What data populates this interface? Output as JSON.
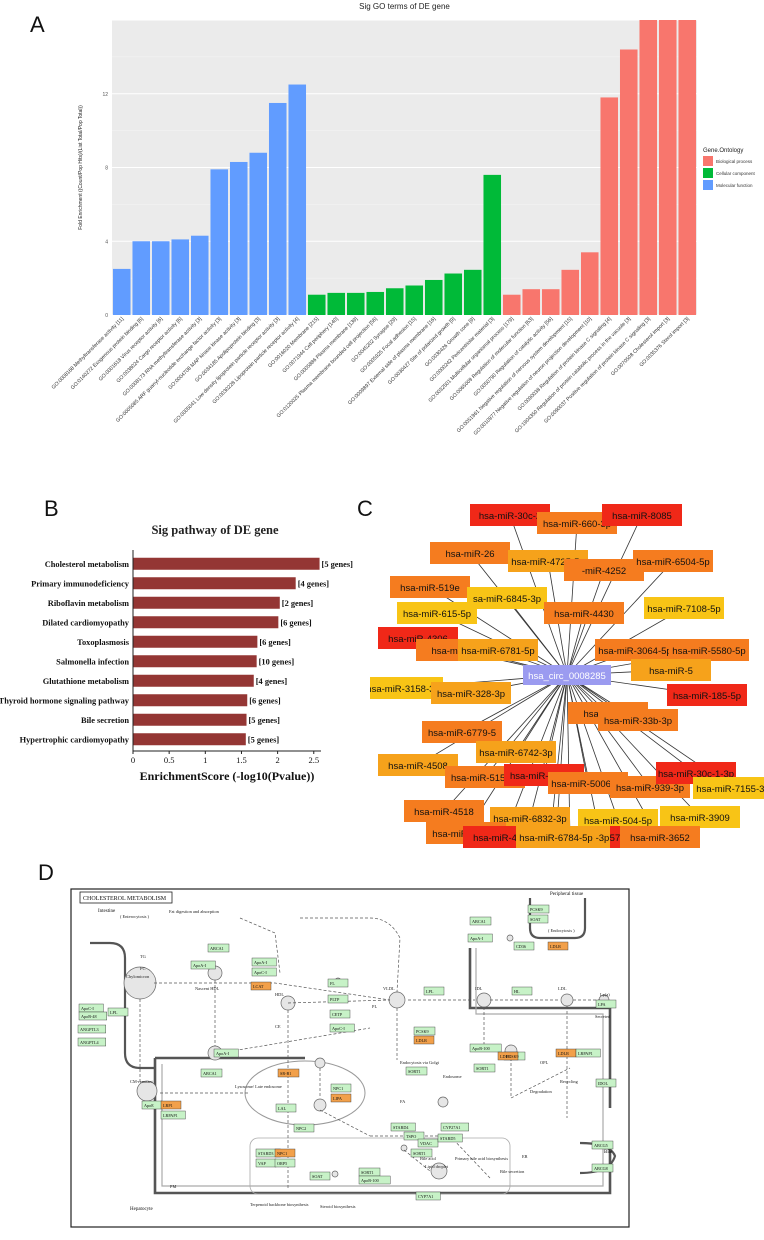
{
  "panels": {
    "a": "A",
    "b": "B",
    "c": "C",
    "d": "D"
  },
  "colors": {
    "biological": "#F8766D",
    "cellular": "#00BA38",
    "molecular": "#619CFF",
    "panelA_bg": "#EBEBEB",
    "barB": "#943634",
    "mirna_red": "#F02818",
    "mirna_orange": "#F57C1F",
    "mirna_amber": "#F6A21B",
    "mirna_yellow": "#F8C416",
    "circ": "#9B9BF0",
    "kegg_green": "#C7F2C7",
    "kegg_orange": "#F2A04A"
  },
  "chart_data": [
    {
      "type": "bar",
      "title": "Sig GO terms of DE gene",
      "xlabel": "",
      "ylabel": "Fold Enrichment ((Count/Pop Hits)/(List Total/Pop Total))",
      "ylim": [
        0,
        16
      ],
      "yticks": [
        "0",
        "4",
        "8",
        "12"
      ],
      "grid": true,
      "legend_title": "Gene.Ontology",
      "legend_position": "right",
      "legend": [
        {
          "key": "bp",
          "label": "Biological process"
        },
        {
          "key": "cc",
          "label": "Cellular component"
        },
        {
          "key": "mf",
          "label": "Molecular function"
        }
      ],
      "categories": [
        "GO:0008168 Methyltransferase activity [11]",
        "GO:0140272 Exogenous protein binding [6]",
        "GO:0001618 Virus receptor activity [6]",
        "GO:0038024 Cargo receptor activity [6]",
        "GO:0008173 RNA methyltransferase activity [3]",
        "GO:0005085 ARF guanyl-nucleotide exchange factor activity [3]",
        "GO:0004708 MAP kinase kinase activity [3]",
        "GO:0034185 Apolipoprotein binding [3]",
        "GO:0005041 Low-density lipoprotein particle receptor activity [3]",
        "GO:0030228 Lipoprotein particle receptor activity [4]",
        "GO:0016020 Membrane [215]",
        "GO:0071944 Cell periphery [140]",
        "GO:0005886 Plasma membrane [139]",
        "GO:0120025 Plasma membrane bounded cell projection [56]",
        "GO:0045202 Synapse [29]",
        "GO:0005925 Focal adhesion [15]",
        "GO:0009897 External side of plasma membrane [16]",
        "GO:0030427 Site of polarized growth [9]",
        "GO:0030426 Growth cone [9]",
        "GO:0000242 Pericentriolar material [3]",
        "GO:0032501 Multicellular organismal process [179]",
        "GO:0065009 Regulation of molecular function [63]",
        "GO:0050790 Regulation of catalytic activity [56]",
        "GO:0051961 Negative regulation of nervous system development [15]",
        "GO:0010977 Negative regulation of neuron projection development [10]",
        "GO:0090038 Regulation of protein kinase C signaling [4]",
        "GO:1904350 Regulation of protein catabolic process in the vacuole [3]",
        "GO:0090037 Positive regulation of protein kinase C signaling [3]",
        "GO:0070508 Cholesterol import [3]",
        "GO:0035376 Sterol import [3]"
      ],
      "values": [
        2.5,
        4.0,
        4.0,
        4.1,
        4.3,
        7.9,
        8.3,
        8.8,
        11.5,
        12.5,
        1.1,
        1.2,
        1.2,
        1.25,
        1.45,
        1.6,
        1.9,
        2.25,
        2.45,
        7.6,
        1.1,
        1.4,
        1.4,
        2.45,
        3.4,
        11.8,
        14.4,
        16.0,
        16.0,
        16.0
      ],
      "groups": [
        "mf",
        "mf",
        "mf",
        "mf",
        "mf",
        "mf",
        "mf",
        "mf",
        "mf",
        "mf",
        "cc",
        "cc",
        "cc",
        "cc",
        "cc",
        "cc",
        "cc",
        "cc",
        "cc",
        "cc",
        "bp",
        "bp",
        "bp",
        "bp",
        "bp",
        "bp",
        "bp",
        "bp",
        "bp",
        "bp"
      ]
    },
    {
      "type": "bar",
      "orientation": "horizontal",
      "title": "Sig pathway of DE gene",
      "xlabel": "EnrichmentScore (-log10(Pvalue))",
      "xlim": [
        0,
        2.6
      ],
      "xticks": [
        "0",
        "0.5",
        "1",
        "1.5",
        "2",
        "2.5"
      ],
      "categories": [
        "Cholesterol metabolism",
        "Primary immunodeficiency",
        "Riboflavin metabolism",
        "Dilated cardiomyopathy",
        "Toxoplasmosis",
        "Salmonella infection",
        "Glutathione metabolism",
        "Thyroid hormone signaling pathway",
        "Bile secretion",
        "Hypertrophic cardiomyopathy"
      ],
      "values": [
        2.58,
        2.25,
        2.03,
        2.01,
        1.72,
        1.71,
        1.67,
        1.58,
        1.57,
        1.56
      ],
      "labels": [
        "[5 genes]",
        "[4 genes]",
        "[2 genes]",
        "[6 genes]",
        "[6 genes]",
        "[10 genes]",
        "[4 genes]",
        "[6 genes]",
        "[5 genes]",
        "[5 genes]"
      ]
    }
  ],
  "network": {
    "center": "hsa_circ_0008285",
    "nodes": [
      {
        "label": "hsa-miR-30c-2",
        "color": "red"
      },
      {
        "label": "hsa-miR-660-3p",
        "color": "orange"
      },
      {
        "label": "hsa-miR-8085",
        "color": "red"
      },
      {
        "label": "hsa-miR-26",
        "color": "orange"
      },
      {
        "label": "hsa-miR-4725-5p",
        "color": "amber"
      },
      {
        "label": "-miR-4252",
        "color": "orange"
      },
      {
        "label": "hsa-miR-6504-5p",
        "color": "orange"
      },
      {
        "label": "hsa-miR-519e",
        "color": "orange"
      },
      {
        "label": "sa-miR-6845-3p",
        "color": "yellow"
      },
      {
        "label": "hsa-miR-615-5p",
        "color": "yellow"
      },
      {
        "label": "hsa-miR-4430",
        "color": "orange"
      },
      {
        "label": "hsa-miR-7108-5p",
        "color": "yellow"
      },
      {
        "label": "hsa-miR-4306",
        "color": "red"
      },
      {
        "label": "hsa-miR-12",
        "color": "orange"
      },
      {
        "label": "hsa-miR-6781-5p",
        "color": "amber"
      },
      {
        "label": "hsa-miR-3064-5p",
        "color": "orange"
      },
      {
        "label": "hsa-miR-5580-5p",
        "color": "orange"
      },
      {
        "label": "hsa-miR-5",
        "color": "amber"
      },
      {
        "label": "hsa-miR-3158-3p",
        "color": "yellow"
      },
      {
        "label": "hsa-miR-328-3p",
        "color": "amber"
      },
      {
        "label": "hsa-miR-71",
        "color": "orange"
      },
      {
        "label": "hsa-miR-33b-3p",
        "color": "orange"
      },
      {
        "label": "hsa-miR-185-5p",
        "color": "red"
      },
      {
        "label": "hsa-miR-6779-5",
        "color": "orange"
      },
      {
        "label": "hsa-miR-6742-3p",
        "color": "amber"
      },
      {
        "label": "hsa-miR-4508",
        "color": "amber"
      },
      {
        "label": "hsa-miR-515-3p",
        "color": "orange"
      },
      {
        "label": "hsa-miR-6731-5",
        "color": "red"
      },
      {
        "label": "hsa-miR-5006-3p",
        "color": "orange"
      },
      {
        "label": "hsa-miR-939-3p",
        "color": "orange"
      },
      {
        "label": "hsa-miR-30c-1-3p",
        "color": "red"
      },
      {
        "label": "hsa-miR-7155-3p",
        "color": "yellow"
      },
      {
        "label": "hsa-miR-4518",
        "color": "orange"
      },
      {
        "label": "hsa-miR-6832-3p",
        "color": "amber"
      },
      {
        "label": "hsa-miR-504-5p",
        "color": "yellow"
      },
      {
        "label": "hsa-miR-3909",
        "color": "yellow"
      },
      {
        "label": "hsa-miR-211-5p",
        "color": "orange"
      },
      {
        "label": "hsa-miR-6788-5p",
        "color": "red"
      },
      {
        "label": "hsa-miR-5787",
        "color": "red"
      },
      {
        "label": "hsa-miR-3652",
        "color": "orange"
      },
      {
        "label": "hsa-miR-4644",
        "color": "red"
      },
      {
        "label": "hsa-miR-1273g-3p",
        "color": "amber"
      },
      {
        "label": "hsa-miR-6784-5p",
        "color": "amber"
      }
    ]
  },
  "kegg": {
    "title": "CHOLESTEROL METABOLISM",
    "areas": [
      "Intestine",
      "Peripheral tissue",
      "Hepatocyte",
      "Bile"
    ],
    "nodes": [
      "ABCA1",
      "ApoA-I",
      "ApoA-II",
      "ApoC-I",
      "LCAT",
      "ApoC-II",
      "LPL",
      "ApoC-III",
      "ApoB-48",
      "ANGPTL3",
      "ANGPTL4",
      "SR-B1",
      "PLTP",
      "CETP",
      "ApoE",
      "LRP1",
      "LRPAP1",
      "LDLR",
      "PCSK9",
      "SORT1",
      "NPC1",
      "NPC2",
      "STARD4",
      "TSPO",
      "VDAC",
      "OSBP",
      "SOAT",
      "CYP7A1",
      "ABCG5",
      "ABCG8",
      "IDOL",
      "CD36",
      "LIPA",
      "LAL",
      "STARD3",
      "ApoB-100",
      "ApoA-IV",
      "HL"
    ],
    "labels": [
      "( Enterocytosis )",
      "Fat digestion and absorption",
      "Chylomicron",
      "Nascent HDL",
      "HDL",
      "VLDL",
      "IDL",
      "LDL",
      "Lp(a)",
      "CM-remnant",
      "Lysosome/ Late endosome",
      "Endosome",
      "Endocytosis via Golgi",
      "Lipid droplet",
      "Primary bile acid biosynthesis",
      "Bile secretion",
      "Steroid biosynthesis",
      "Terpenoid backbone biosynthesis",
      "Bile acid",
      "Recycling",
      "Degradation",
      "Secreted",
      "ER",
      "PM",
      "TG",
      "FC",
      "CE",
      "PL",
      "FA",
      "OPL",
      "( Endocytosis )",
      "Peripheral tissue"
    ]
  }
}
